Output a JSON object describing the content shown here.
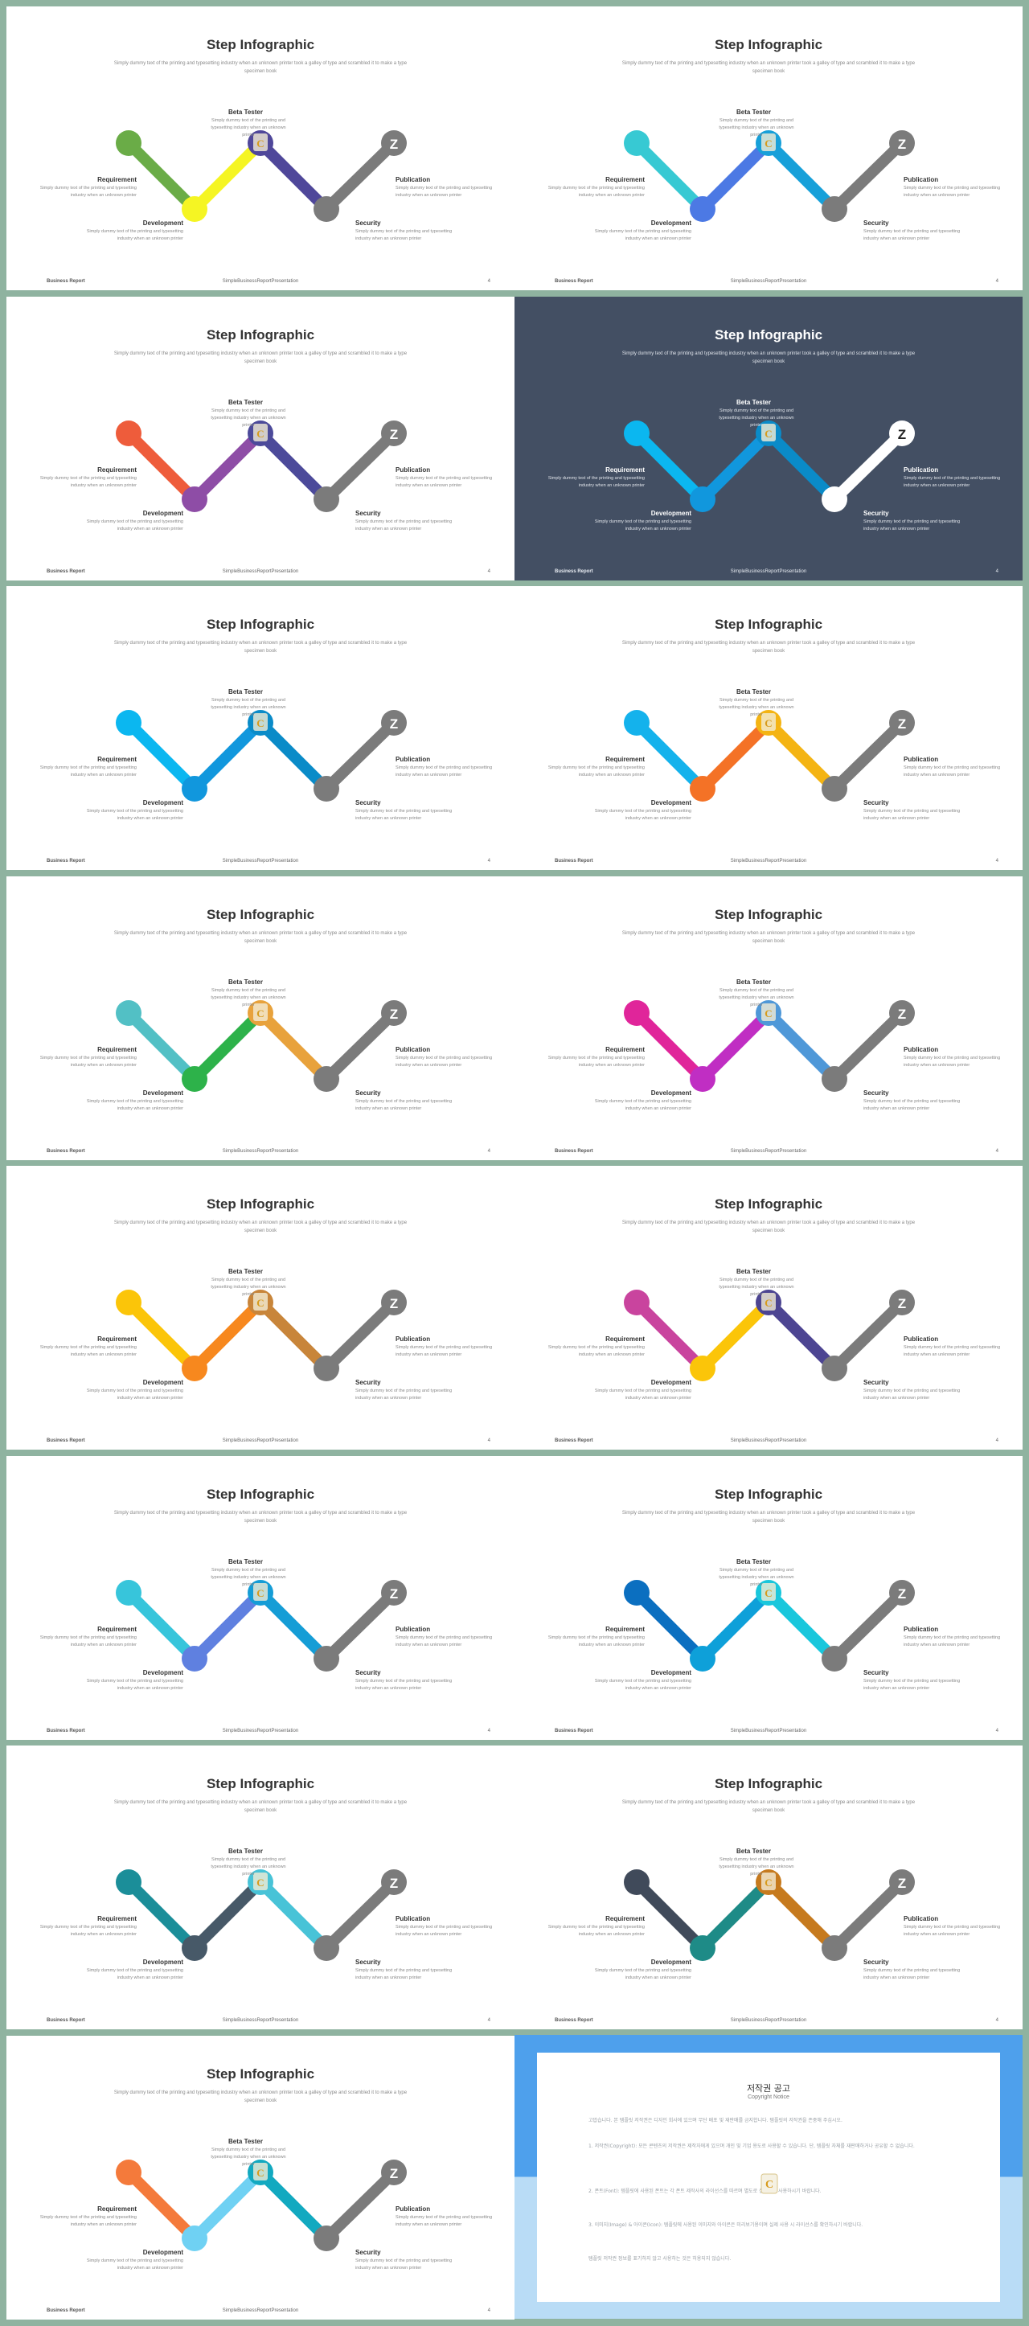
{
  "slide_text": {
    "title": "Step Infographic",
    "subtitle": "Simply dummy text of the printing and typesetting industry when an unknown printer took a galley of type and scrambled it to make a type specimen book",
    "steps": {
      "beta": "Beta Tester",
      "req": "Requirement",
      "pub": "Publication",
      "dev": "Development",
      "sec": "Security"
    },
    "step_desc": "Simply dummy text of the printing and typesetting industry when an unknown printer",
    "footer_left": "Business Report",
    "footer_center": "SimpleBusinessReportPresentation",
    "page_number": "4"
  },
  "slides": [
    {
      "dark": false,
      "colors": [
        "#6aac47",
        "#f5f523",
        "#4f479a",
        "#7b7b7b"
      ]
    },
    {
      "dark": false,
      "colors": [
        "#37c9d3",
        "#4c79e4",
        "#17a0d9",
        "#7b7b7b"
      ]
    },
    {
      "dark": false,
      "colors": [
        "#ee5c3b",
        "#8e4da6",
        "#4c4a9a",
        "#7b7b7b"
      ]
    },
    {
      "dark": true,
      "colors": [
        "#0bb7f0",
        "#1197dd",
        "#0a8bc8",
        "#ffffff"
      ]
    },
    {
      "dark": false,
      "colors": [
        "#0bb7f0",
        "#1197dd",
        "#0a8bc8",
        "#7b7b7b"
      ]
    },
    {
      "dark": false,
      "colors": [
        "#14b2ec",
        "#f47226",
        "#f4b413",
        "#7b7b7b"
      ]
    },
    {
      "dark": false,
      "colors": [
        "#52c0c5",
        "#2db24a",
        "#e8a23c",
        "#7b7b7b"
      ]
    },
    {
      "dark": false,
      "colors": [
        "#e0259a",
        "#c02ec3",
        "#4f98d8",
        "#7b7b7b"
      ]
    },
    {
      "dark": false,
      "colors": [
        "#fbc509",
        "#f7881e",
        "#c8853a",
        "#7b7b7b"
      ]
    },
    {
      "dark": false,
      "colors": [
        "#c9449e",
        "#fbc509",
        "#4d4592",
        "#7b7b7b"
      ]
    },
    {
      "dark": false,
      "colors": [
        "#37c5db",
        "#5f80e0",
        "#159dd6",
        "#7b7b7b"
      ]
    },
    {
      "dark": false,
      "colors": [
        "#0b6fc0",
        "#0ea0d9",
        "#19c7dc",
        "#7b7b7b"
      ]
    },
    {
      "dark": false,
      "colors": [
        "#1b8e99",
        "#475968",
        "#48c3d7",
        "#7b7b7b"
      ]
    },
    {
      "dark": false,
      "colors": [
        "#404a5a",
        "#1e8b87",
        "#c67a1e",
        "#7b7b7b"
      ]
    },
    {
      "dark": false,
      "colors": [
        "#f47a3b",
        "#6fd1f3",
        "#12a9c0",
        "#7b7b7b"
      ]
    }
  ],
  "copyright": {
    "title": "저작권 공고",
    "subtitle": "Copyright Notice",
    "paragraphs": [
      "고맙습니다. 본 템플릿 저작권은 디자인 회사에 있으며 무단 배포 및 재판매를 금지합니다. 템플릿의 저작권을 존중해 주십시오.",
      "1. 저작권(Copyright): 모든 콘텐츠의 저작권은 제작자에게 있으며 개인 및 기업 용도로 사용할 수 있습니다. 단, 템플릿 자체를 재판매하거나 공유할 수 없습니다.",
      "2. 폰트(Font): 템플릿에 사용된 폰트는 각 폰트 제작사의 라이선스를 따르며 별도로 설치하여 사용하시기 바랍니다.",
      "3. 이미지(Image) & 아이콘(Icon): 템플릿에 사용된 이미지와 아이콘은 미리보기용이며 실제 사용 시 라이선스를 확인하시기 바랍니다.",
      "템플릿 저작권 정보를 표기하지 않고 사용하는 것은 허용되지 않습니다."
    ]
  }
}
